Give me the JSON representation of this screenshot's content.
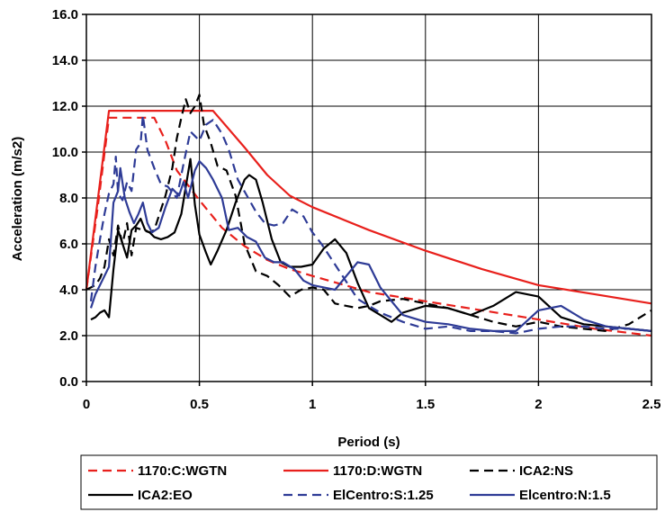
{
  "chart_data": {
    "type": "line",
    "title": "",
    "xlabel": "Period (s)",
    "ylabel": "Acceleration (m/s2)",
    "xlim": [
      0,
      2.5
    ],
    "ylim": [
      0,
      16
    ],
    "grid": true,
    "legend_position": "bottom",
    "x_ticks": [
      "0",
      "0.5",
      "1",
      "1.5",
      "2",
      "2.5"
    ],
    "y_ticks": [
      "0.0",
      "2.0",
      "4.0",
      "6.0",
      "8.0",
      "10.0",
      "12.0",
      "14.0",
      "16.0"
    ],
    "series": [
      {
        "name": "1170:C:WGTN",
        "color": "#e8201c",
        "dash": "dashed",
        "points": [
          [
            0,
            4.0
          ],
          [
            0.05,
            7.6
          ],
          [
            0.1,
            11.5
          ],
          [
            0.2,
            11.5
          ],
          [
            0.3,
            11.5
          ],
          [
            0.35,
            10.5
          ],
          [
            0.4,
            9.2
          ],
          [
            0.5,
            7.9
          ],
          [
            0.6,
            6.7
          ],
          [
            0.7,
            5.9
          ],
          [
            0.8,
            5.3
          ],
          [
            0.9,
            4.9
          ],
          [
            1.0,
            4.6
          ],
          [
            1.25,
            3.9
          ],
          [
            1.5,
            3.5
          ],
          [
            1.75,
            3.1
          ],
          [
            2.0,
            2.7
          ],
          [
            2.25,
            2.3
          ],
          [
            2.5,
            2.0
          ]
        ]
      },
      {
        "name": "1170:D:WGTN",
        "color": "#e8201c",
        "dash": "solid",
        "points": [
          [
            0,
            4.0
          ],
          [
            0.05,
            7.9
          ],
          [
            0.1,
            11.8
          ],
          [
            0.2,
            11.8
          ],
          [
            0.3,
            11.8
          ],
          [
            0.4,
            11.8
          ],
          [
            0.5,
            11.8
          ],
          [
            0.56,
            11.8
          ],
          [
            0.7,
            10.2
          ],
          [
            0.8,
            9.0
          ],
          [
            0.9,
            8.1
          ],
          [
            1.0,
            7.6
          ],
          [
            1.25,
            6.6
          ],
          [
            1.5,
            5.7
          ],
          [
            1.75,
            4.9
          ],
          [
            2.0,
            4.2
          ],
          [
            2.25,
            3.8
          ],
          [
            2.5,
            3.4
          ]
        ]
      },
      {
        "name": "ICA2:NS",
        "color": "#000000",
        "dash": "dashed",
        "points": [
          [
            0,
            4.0
          ],
          [
            0.04,
            4.2
          ],
          [
            0.06,
            4.5
          ],
          [
            0.08,
            5.0
          ],
          [
            0.1,
            6.2
          ],
          [
            0.12,
            5.5
          ],
          [
            0.14,
            6.8
          ],
          [
            0.16,
            6.0
          ],
          [
            0.18,
            6.9
          ],
          [
            0.2,
            5.5
          ],
          [
            0.22,
            6.7
          ],
          [
            0.25,
            6.6
          ],
          [
            0.28,
            6.5
          ],
          [
            0.3,
            6.6
          ],
          [
            0.32,
            7.2
          ],
          [
            0.35,
            8.1
          ],
          [
            0.38,
            9.3
          ],
          [
            0.4,
            10.6
          ],
          [
            0.42,
            11.5
          ],
          [
            0.44,
            12.3
          ],
          [
            0.46,
            11.7
          ],
          [
            0.48,
            12.0
          ],
          [
            0.5,
            12.5
          ],
          [
            0.52,
            11.2
          ],
          [
            0.55,
            10.4
          ],
          [
            0.58,
            9.4
          ],
          [
            0.62,
            9.2
          ],
          [
            0.66,
            8.1
          ],
          [
            0.7,
            6.0
          ],
          [
            0.75,
            4.8
          ],
          [
            0.8,
            4.6
          ],
          [
            0.85,
            4.2
          ],
          [
            0.9,
            3.7
          ],
          [
            0.95,
            4.0
          ],
          [
            1.0,
            4.1
          ],
          [
            1.05,
            4.0
          ],
          [
            1.1,
            3.4
          ],
          [
            1.15,
            3.3
          ],
          [
            1.2,
            3.2
          ],
          [
            1.25,
            3.3
          ],
          [
            1.3,
            3.5
          ],
          [
            1.4,
            3.6
          ],
          [
            1.5,
            3.4
          ],
          [
            1.6,
            3.2
          ],
          [
            1.7,
            2.9
          ],
          [
            1.8,
            2.6
          ],
          [
            1.9,
            2.4
          ],
          [
            2.0,
            2.6
          ],
          [
            2.1,
            2.4
          ],
          [
            2.2,
            2.3
          ],
          [
            2.3,
            2.2
          ],
          [
            2.4,
            2.5
          ],
          [
            2.5,
            3.1
          ]
        ]
      },
      {
        "name": "ICA2:EO",
        "color": "#000000",
        "dash": "solid",
        "points": [
          [
            0.02,
            2.7
          ],
          [
            0.04,
            2.8
          ],
          [
            0.06,
            3.0
          ],
          [
            0.08,
            3.1
          ],
          [
            0.1,
            2.8
          ],
          [
            0.12,
            4.9
          ],
          [
            0.14,
            6.6
          ],
          [
            0.16,
            6.0
          ],
          [
            0.18,
            5.4
          ],
          [
            0.2,
            6.6
          ],
          [
            0.22,
            6.8
          ],
          [
            0.24,
            7.1
          ],
          [
            0.26,
            6.6
          ],
          [
            0.28,
            6.5
          ],
          [
            0.3,
            6.3
          ],
          [
            0.33,
            6.2
          ],
          [
            0.36,
            6.3
          ],
          [
            0.39,
            6.5
          ],
          [
            0.42,
            7.3
          ],
          [
            0.44,
            8.5
          ],
          [
            0.46,
            9.7
          ],
          [
            0.48,
            7.7
          ],
          [
            0.5,
            6.4
          ],
          [
            0.53,
            5.6
          ],
          [
            0.55,
            5.1
          ],
          [
            0.58,
            5.7
          ],
          [
            0.62,
            6.6
          ],
          [
            0.66,
            7.8
          ],
          [
            0.7,
            8.8
          ],
          [
            0.72,
            9.0
          ],
          [
            0.75,
            8.8
          ],
          [
            0.78,
            7.8
          ],
          [
            0.82,
            6.2
          ],
          [
            0.86,
            5.2
          ],
          [
            0.9,
            5.0
          ],
          [
            0.95,
            5.0
          ],
          [
            1.0,
            5.1
          ],
          [
            1.05,
            5.8
          ],
          [
            1.1,
            6.2
          ],
          [
            1.15,
            5.6
          ],
          [
            1.2,
            4.3
          ],
          [
            1.25,
            3.2
          ],
          [
            1.3,
            2.9
          ],
          [
            1.35,
            2.6
          ],
          [
            1.4,
            3.0
          ],
          [
            1.5,
            3.3
          ],
          [
            1.6,
            3.2
          ],
          [
            1.7,
            2.9
          ],
          [
            1.8,
            3.3
          ],
          [
            1.9,
            3.9
          ],
          [
            2.0,
            3.7
          ],
          [
            2.1,
            2.8
          ],
          [
            2.2,
            2.5
          ],
          [
            2.3,
            2.4
          ],
          [
            2.4,
            2.3
          ],
          [
            2.5,
            2.2
          ]
        ]
      },
      {
        "name": "ElCentro:S:1.25",
        "color": "#2e3b96",
        "dash": "dashed",
        "points": [
          [
            0.02,
            3.5
          ],
          [
            0.04,
            5.0
          ],
          [
            0.06,
            6.2
          ],
          [
            0.08,
            7.3
          ],
          [
            0.1,
            8.2
          ],
          [
            0.12,
            8.6
          ],
          [
            0.13,
            9.8
          ],
          [
            0.14,
            8.2
          ],
          [
            0.16,
            7.9
          ],
          [
            0.18,
            8.7
          ],
          [
            0.2,
            8.3
          ],
          [
            0.22,
            10.1
          ],
          [
            0.24,
            10.4
          ],
          [
            0.25,
            11.6
          ],
          [
            0.27,
            10.1
          ],
          [
            0.3,
            9.3
          ],
          [
            0.33,
            8.6
          ],
          [
            0.36,
            8.5
          ],
          [
            0.4,
            8.0
          ],
          [
            0.43,
            9.5
          ],
          [
            0.46,
            10.9
          ],
          [
            0.48,
            10.7
          ],
          [
            0.5,
            10.5
          ],
          [
            0.53,
            11.2
          ],
          [
            0.56,
            11.4
          ],
          [
            0.6,
            10.8
          ],
          [
            0.63,
            10.1
          ],
          [
            0.67,
            8.8
          ],
          [
            0.71,
            8.1
          ],
          [
            0.75,
            7.4
          ],
          [
            0.79,
            6.9
          ],
          [
            0.83,
            6.8
          ],
          [
            0.87,
            6.9
          ],
          [
            0.91,
            7.5
          ],
          [
            0.96,
            7.2
          ],
          [
            1.0,
            6.5
          ],
          [
            1.04,
            6.0
          ],
          [
            1.08,
            5.4
          ],
          [
            1.12,
            4.8
          ],
          [
            1.2,
            3.6
          ],
          [
            1.3,
            3.0
          ],
          [
            1.4,
            2.6
          ],
          [
            1.5,
            2.3
          ],
          [
            1.6,
            2.4
          ],
          [
            1.7,
            2.2
          ],
          [
            1.8,
            2.2
          ],
          [
            1.9,
            2.1
          ],
          [
            2.0,
            2.3
          ],
          [
            2.1,
            2.4
          ],
          [
            2.2,
            2.4
          ],
          [
            2.3,
            2.3
          ],
          [
            2.4,
            2.3
          ],
          [
            2.5,
            2.2
          ]
        ]
      },
      {
        "name": "Elcentro:N:1.5",
        "color": "#2e3b96",
        "dash": "solid",
        "points": [
          [
            0.02,
            3.2
          ],
          [
            0.04,
            3.8
          ],
          [
            0.06,
            4.2
          ],
          [
            0.08,
            4.6
          ],
          [
            0.1,
            5.0
          ],
          [
            0.12,
            7.8
          ],
          [
            0.14,
            8.3
          ],
          [
            0.15,
            9.3
          ],
          [
            0.17,
            8.0
          ],
          [
            0.19,
            7.4
          ],
          [
            0.21,
            6.9
          ],
          [
            0.23,
            7.3
          ],
          [
            0.25,
            7.8
          ],
          [
            0.27,
            6.9
          ],
          [
            0.29,
            6.5
          ],
          [
            0.32,
            6.7
          ],
          [
            0.35,
            7.6
          ],
          [
            0.38,
            8.4
          ],
          [
            0.41,
            8.1
          ],
          [
            0.43,
            8.7
          ],
          [
            0.45,
            8.0
          ],
          [
            0.48,
            9.2
          ],
          [
            0.5,
            9.6
          ],
          [
            0.53,
            9.3
          ],
          [
            0.56,
            8.8
          ],
          [
            0.6,
            8.0
          ],
          [
            0.63,
            6.6
          ],
          [
            0.67,
            6.7
          ],
          [
            0.71,
            6.3
          ],
          [
            0.75,
            6.1
          ],
          [
            0.79,
            5.4
          ],
          [
            0.83,
            5.2
          ],
          [
            0.87,
            5.2
          ],
          [
            0.92,
            4.9
          ],
          [
            0.96,
            4.4
          ],
          [
            1.0,
            4.2
          ],
          [
            1.05,
            4.1
          ],
          [
            1.1,
            4.0
          ],
          [
            1.15,
            4.6
          ],
          [
            1.2,
            5.2
          ],
          [
            1.25,
            5.1
          ],
          [
            1.3,
            4.1
          ],
          [
            1.4,
            2.9
          ],
          [
            1.5,
            2.6
          ],
          [
            1.6,
            2.5
          ],
          [
            1.7,
            2.3
          ],
          [
            1.8,
            2.2
          ],
          [
            1.9,
            2.2
          ],
          [
            2.0,
            3.1
          ],
          [
            2.1,
            3.3
          ],
          [
            2.2,
            2.7
          ],
          [
            2.3,
            2.4
          ],
          [
            2.4,
            2.3
          ],
          [
            2.5,
            2.2
          ]
        ]
      }
    ]
  }
}
